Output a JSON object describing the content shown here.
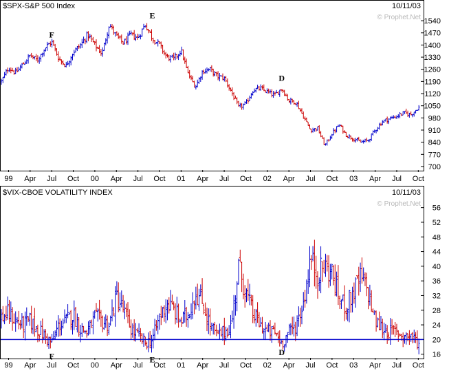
{
  "chart_data": [
    {
      "type": "ohlc",
      "title": "$SPX-S&P 500 Index",
      "date_label": "10/11/03",
      "watermark": "© Prophet.Net",
      "ylim": [
        680,
        1580
      ],
      "y_ticks": [
        "700",
        "770",
        "840",
        "910",
        "980",
        "1050",
        "1120",
        "1190",
        "1260",
        "1330",
        "1400",
        "1470",
        "1540"
      ],
      "x_ticks": [
        "99",
        "Apr",
        "Jul",
        "Oct",
        "00",
        "Apr",
        "Jul",
        "Oct",
        "01",
        "Apr",
        "Jul",
        "Oct",
        "02",
        "Apr",
        "Jul",
        "Oct",
        "03",
        "Apr",
        "Jul",
        "Oct"
      ],
      "colors": {
        "up": "#0000cc",
        "down": "#cc0000"
      },
      "series": [
        {
          "date": "1998-12",
          "close": 1190
        },
        {
          "date": "1999-01",
          "close": 1270
        },
        {
          "date": "1999-02",
          "close": 1240
        },
        {
          "date": "1999-03",
          "close": 1290
        },
        {
          "date": "1999-04",
          "close": 1340
        },
        {
          "date": "1999-05",
          "close": 1310
        },
        {
          "date": "1999-06",
          "close": 1380
        },
        {
          "date": "1999-07",
          "close": 1420
        },
        {
          "date": "1999-08",
          "close": 1320
        },
        {
          "date": "1999-09",
          "close": 1280
        },
        {
          "date": "1999-10",
          "close": 1360
        },
        {
          "date": "1999-11",
          "close": 1400
        },
        {
          "date": "1999-12",
          "close": 1460
        },
        {
          "date": "2000-01",
          "close": 1400
        },
        {
          "date": "2000-02",
          "close": 1350
        },
        {
          "date": "2000-03",
          "close": 1520
        },
        {
          "date": "2000-04",
          "close": 1450
        },
        {
          "date": "2000-05",
          "close": 1410
        },
        {
          "date": "2000-06",
          "close": 1460
        },
        {
          "date": "2000-07",
          "close": 1440
        },
        {
          "date": "2000-08",
          "close": 1520
        },
        {
          "date": "2000-09",
          "close": 1440
        },
        {
          "date": "2000-10",
          "close": 1400
        },
        {
          "date": "2000-11",
          "close": 1330
        },
        {
          "date": "2000-12",
          "close": 1320
        },
        {
          "date": "2001-01",
          "close": 1370
        },
        {
          "date": "2001-02",
          "close": 1230
        },
        {
          "date": "2001-03",
          "close": 1160
        },
        {
          "date": "2001-04",
          "close": 1250
        },
        {
          "date": "2001-05",
          "close": 1260
        },
        {
          "date": "2001-06",
          "close": 1220
        },
        {
          "date": "2001-07",
          "close": 1210
        },
        {
          "date": "2001-08",
          "close": 1130
        },
        {
          "date": "2001-09",
          "close": 1040
        },
        {
          "date": "2001-10",
          "close": 1060
        },
        {
          "date": "2001-11",
          "close": 1140
        },
        {
          "date": "2001-12",
          "close": 1150
        },
        {
          "date": "2002-01",
          "close": 1130
        },
        {
          "date": "2002-02",
          "close": 1110
        },
        {
          "date": "2002-03",
          "close": 1150
        },
        {
          "date": "2002-04",
          "close": 1080
        },
        {
          "date": "2002-05",
          "close": 1070
        },
        {
          "date": "2002-06",
          "close": 990
        },
        {
          "date": "2002-07",
          "close": 910
        },
        {
          "date": "2002-08",
          "close": 920
        },
        {
          "date": "2002-09",
          "close": 820
        },
        {
          "date": "2002-10",
          "close": 890
        },
        {
          "date": "2002-11",
          "close": 940
        },
        {
          "date": "2002-12",
          "close": 880
        },
        {
          "date": "2003-01",
          "close": 860
        },
        {
          "date": "2003-02",
          "close": 840
        },
        {
          "date": "2003-03",
          "close": 850
        },
        {
          "date": "2003-04",
          "close": 910
        },
        {
          "date": "2003-05",
          "close": 960
        },
        {
          "date": "2003-06",
          "close": 975
        },
        {
          "date": "2003-07",
          "close": 990
        },
        {
          "date": "2003-08",
          "close": 1008
        },
        {
          "date": "2003-09",
          "close": 1000
        },
        {
          "date": "2003-10",
          "close": 1040
        }
      ],
      "annotations": [
        {
          "label": "F",
          "date": "1999-07",
          "value": 1420
        },
        {
          "label": "E",
          "date": "2000-09",
          "value": 1530
        },
        {
          "label": "D",
          "date": "2002-03",
          "value": 1170
        }
      ]
    },
    {
      "type": "ohlc",
      "title": "$VIX-CBOE VOLATILITY INDEX",
      "date_label": "10/11/03",
      "watermark": "© Prophet.Net",
      "ylim": [
        15,
        58
      ],
      "y_ticks": [
        "16",
        "20",
        "24",
        "28",
        "32",
        "36",
        "40",
        "44",
        "48",
        "52",
        "56"
      ],
      "x_ticks": [
        "99",
        "Apr",
        "Jul",
        "Oct",
        "00",
        "Apr",
        "Jul",
        "Oct",
        "01",
        "Apr",
        "Jul",
        "Oct",
        "02",
        "Apr",
        "Jul",
        "Oct",
        "03",
        "Apr",
        "Jul",
        "Oct"
      ],
      "colors": {
        "up": "#0000cc",
        "down": "#cc0000",
        "reference": "#0000cc"
      },
      "reference_line": 20,
      "series": [
        {
          "date": "1998-12",
          "close": 26
        },
        {
          "date": "1999-01",
          "close": 27
        },
        {
          "date": "1999-02",
          "close": 25
        },
        {
          "date": "1999-03",
          "close": 24
        },
        {
          "date": "1999-04",
          "close": 25
        },
        {
          "date": "1999-05",
          "close": 23
        },
        {
          "date": "1999-06",
          "close": 21
        },
        {
          "date": "1999-07",
          "close": 19
        },
        {
          "date": "1999-08",
          "close": 24
        },
        {
          "date": "1999-09",
          "close": 25
        },
        {
          "date": "1999-10",
          "close": 27
        },
        {
          "date": "1999-11",
          "close": 23
        },
        {
          "date": "1999-12",
          "close": 22
        },
        {
          "date": "2000-01",
          "close": 26
        },
        {
          "date": "2000-02",
          "close": 25
        },
        {
          "date": "2000-03",
          "close": 24
        },
        {
          "date": "2000-04",
          "close": 32
        },
        {
          "date": "2000-05",
          "close": 28
        },
        {
          "date": "2000-06",
          "close": 23
        },
        {
          "date": "2000-07",
          "close": 21
        },
        {
          "date": "2000-08",
          "close": 19
        },
        {
          "date": "2000-09",
          "close": 20
        },
        {
          "date": "2000-10",
          "close": 26
        },
        {
          "date": "2000-11",
          "close": 30
        },
        {
          "date": "2000-12",
          "close": 28
        },
        {
          "date": "2001-01",
          "close": 25
        },
        {
          "date": "2001-02",
          "close": 27
        },
        {
          "date": "2001-03",
          "close": 33
        },
        {
          "date": "2001-04",
          "close": 30
        },
        {
          "date": "2001-05",
          "close": 24
        },
        {
          "date": "2001-06",
          "close": 21
        },
        {
          "date": "2001-07",
          "close": 22
        },
        {
          "date": "2001-08",
          "close": 24
        },
        {
          "date": "2001-09",
          "close": 40
        },
        {
          "date": "2001-10",
          "close": 33
        },
        {
          "date": "2001-11",
          "close": 27
        },
        {
          "date": "2001-12",
          "close": 24
        },
        {
          "date": "2002-01",
          "close": 22
        },
        {
          "date": "2002-02",
          "close": 22
        },
        {
          "date": "2002-03",
          "close": 19
        },
        {
          "date": "2002-04",
          "close": 22
        },
        {
          "date": "2002-05",
          "close": 24
        },
        {
          "date": "2002-06",
          "close": 30
        },
        {
          "date": "2002-07",
          "close": 42
        },
        {
          "date": "2002-08",
          "close": 38
        },
        {
          "date": "2002-09",
          "close": 40
        },
        {
          "date": "2002-10",
          "close": 38
        },
        {
          "date": "2002-11",
          "close": 31
        },
        {
          "date": "2002-12",
          "close": 29
        },
        {
          "date": "2003-01",
          "close": 33
        },
        {
          "date": "2003-02",
          "close": 37
        },
        {
          "date": "2003-03",
          "close": 33
        },
        {
          "date": "2003-04",
          "close": 25
        },
        {
          "date": "2003-05",
          "close": 23
        },
        {
          "date": "2003-06",
          "close": 22
        },
        {
          "date": "2003-07",
          "close": 22
        },
        {
          "date": "2003-08",
          "close": 21
        },
        {
          "date": "2003-09",
          "close": 21
        },
        {
          "date": "2003-10",
          "close": 19
        }
      ],
      "annotations": [
        {
          "label": "F",
          "date": "1999-07",
          "value": 17
        },
        {
          "label": "E",
          "date": "2000-09",
          "value": 16
        },
        {
          "label": "D",
          "date": "2002-03",
          "value": 18
        }
      ]
    }
  ]
}
